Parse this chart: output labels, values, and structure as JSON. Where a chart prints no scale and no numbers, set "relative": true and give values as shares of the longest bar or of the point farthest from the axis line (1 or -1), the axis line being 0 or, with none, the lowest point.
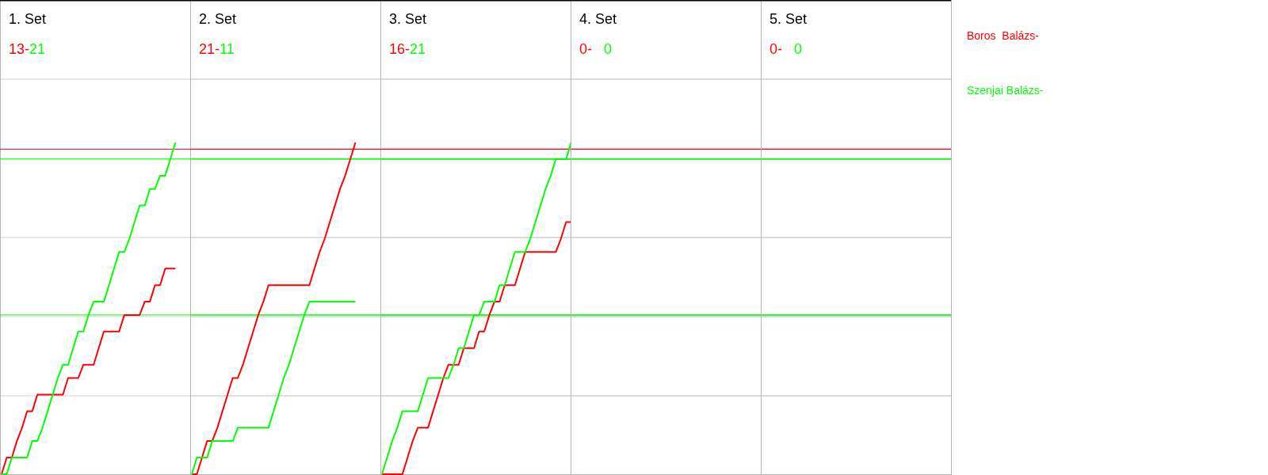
{
  "chart_data": [
    {
      "type": "line",
      "title": "1. Set",
      "annotations": [
        "13-",
        "21"
      ],
      "relative": true,
      "grid": "y",
      "categories": [
        null,
        null,
        null,
        null,
        null,
        null,
        null,
        null,
        null,
        null,
        null,
        null,
        null,
        null,
        null,
        null,
        null,
        null,
        null,
        null,
        null,
        null,
        null,
        null,
        null,
        null,
        null,
        null,
        null,
        null,
        null,
        null,
        null,
        null,
        null
      ],
      "series": [
        {
          "color": "#ff0000",
          "values": [
            0,
            0.05,
            0.05,
            0.1,
            0.14,
            0.19,
            0.19,
            0.24,
            0.24,
            0.24,
            0.24,
            0.24,
            0.24,
            0.29,
            0.29,
            0.29,
            0.33,
            0.33,
            0.33,
            0.38,
            0.43,
            0.43,
            0.43,
            0.43,
            0.48,
            0.48,
            0.48,
            0.48,
            0.52,
            0.52,
            0.57,
            0.57,
            0.62,
            0.62,
            0.62
          ]
        },
        {
          "color": "#00ff00",
          "values": [
            0,
            0,
            0.05,
            0.05,
            0.05,
            0.05,
            0.1,
            0.1,
            0.14,
            0.19,
            0.24,
            0.29,
            0.33,
            0.33,
            0.38,
            0.43,
            0.43,
            0.48,
            0.52,
            0.52,
            0.52,
            0.57,
            0.62,
            0.67,
            0.67,
            0.71,
            0.76,
            0.81,
            0.81,
            0.86,
            0.86,
            0.9,
            0.9,
            0.95,
            1
          ]
        }
      ],
      "ref_lines": [
        {
          "axis": "y",
          "value": 0.98,
          "color": "#ff0000"
        },
        {
          "axis": "y",
          "value": 0.95,
          "color": "#00ff00"
        },
        {
          "axis": "y",
          "value": 0.48,
          "color": "#00ff00"
        }
      ]
    },
    {
      "type": "line",
      "title": "2. Set",
      "annotations": [
        "21-",
        "11"
      ],
      "relative": true,
      "grid": "y",
      "categories": [
        null,
        null,
        null,
        null,
        null,
        null,
        null,
        null,
        null,
        null,
        null,
        null,
        null,
        null,
        null,
        null,
        null,
        null,
        null,
        null,
        null,
        null,
        null,
        null,
        null,
        null,
        null,
        null,
        null,
        null,
        null,
        null,
        null
      ],
      "series": [
        {
          "color": "#ff0000",
          "values": [
            0,
            0,
            0.05,
            0.1,
            0.1,
            0.14,
            0.19,
            0.24,
            0.29,
            0.29,
            0.33,
            0.38,
            0.43,
            0.48,
            0.52,
            0.57,
            0.57,
            0.57,
            0.57,
            0.57,
            0.57,
            0.57,
            0.57,
            0.57,
            0.62,
            0.67,
            0.71,
            0.76,
            0.81,
            0.86,
            0.9,
            0.95,
            1
          ]
        },
        {
          "color": "#00ff00",
          "values": [
            0,
            0.05,
            0.05,
            0.05,
            0.1,
            0.1,
            0.1,
            0.1,
            0.1,
            0.14,
            0.14,
            0.14,
            0.14,
            0.14,
            0.14,
            0.14,
            0.19,
            0.24,
            0.29,
            0.33,
            0.38,
            0.43,
            0.48,
            0.52,
            0.52,
            0.52,
            0.52,
            0.52,
            0.52,
            0.52,
            0.52,
            0.52,
            0.52
          ]
        }
      ],
      "ref_lines": [
        {
          "axis": "y",
          "value": 0.98,
          "color": "#ff0000"
        },
        {
          "axis": "y",
          "value": 0.95,
          "color": "#00ff00"
        },
        {
          "axis": "y",
          "value": 0.48,
          "color": "#00ff00"
        }
      ]
    },
    {
      "type": "line",
      "title": "3. Set",
      "annotations": [
        "16-",
        "21"
      ],
      "relative": true,
      "grid": "y",
      "categories": [
        null,
        null,
        null,
        null,
        null,
        null,
        null,
        null,
        null,
        null,
        null,
        null,
        null,
        null,
        null,
        null,
        null,
        null,
        null,
        null,
        null,
        null,
        null,
        null,
        null,
        null,
        null,
        null,
        null,
        null,
        null,
        null,
        null,
        null,
        null,
        null,
        null,
        null
      ],
      "series": [
        {
          "color": "#ff0000",
          "values": [
            0,
            0,
            0,
            0,
            0,
            0.05,
            0.1,
            0.14,
            0.14,
            0.14,
            0.19,
            0.24,
            0.29,
            0.33,
            0.33,
            0.33,
            0.38,
            0.38,
            0.38,
            0.43,
            0.43,
            0.48,
            0.52,
            0.52,
            0.57,
            0.57,
            0.57,
            0.62,
            0.67,
            0.67,
            0.67,
            0.67,
            0.67,
            0.67,
            0.67,
            0.71,
            0.76,
            0.76
          ]
        },
        {
          "color": "#00ff00",
          "values": [
            0,
            0.05,
            0.1,
            0.14,
            0.19,
            0.19,
            0.19,
            0.19,
            0.24,
            0.29,
            0.29,
            0.29,
            0.29,
            0.29,
            0.33,
            0.38,
            0.38,
            0.43,
            0.48,
            0.48,
            0.52,
            0.52,
            0.52,
            0.57,
            0.57,
            0.62,
            0.67,
            0.67,
            0.67,
            0.71,
            0.76,
            0.81,
            0.86,
            0.9,
            0.95,
            0.95,
            0.95,
            1
          ]
        }
      ],
      "ref_lines": [
        {
          "axis": "y",
          "value": 0.98,
          "color": "#ff0000"
        },
        {
          "axis": "y",
          "value": 0.95,
          "color": "#00ff00"
        },
        {
          "axis": "y",
          "value": 0.48,
          "color": "#00ff00"
        }
      ]
    },
    {
      "type": "other",
      "title": "4. Set",
      "annotations": [
        "0-",
        "0"
      ],
      "series": [
        {
          "color": "#ff0000"
        },
        {
          "color": "#00ff00"
        }
      ]
    },
    {
      "type": "other",
      "title": "5. Set",
      "annotations": [
        "0-",
        "0"
      ],
      "series": [
        {
          "name": "Boros  Balázs-",
          "color": "#ff0000"
        },
        {
          "name": "Szenjai Balázs-",
          "color": "#00ff00"
        }
      ]
    }
  ]
}
